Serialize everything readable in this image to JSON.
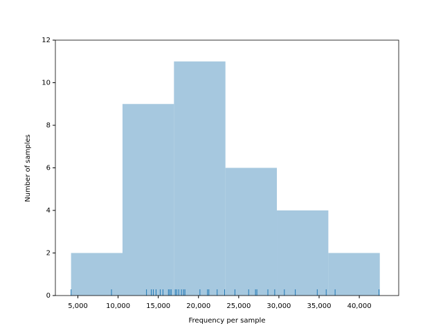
{
  "chart_data": {
    "type": "histogram",
    "xlabel": "Frequency per sample",
    "ylabel": "Number of samples",
    "bins": [
      4150,
      10550,
      16950,
      23350,
      29750,
      36150,
      42550
    ],
    "values": [
      2,
      9,
      11,
      6,
      4,
      2
    ],
    "color": "#a6c8df",
    "rug": [
      4150,
      9180,
      13530,
      14130,
      14380,
      14720,
      15240,
      15580,
      16260,
      16430,
      16600,
      17110,
      17280,
      17540,
      17880,
      18140,
      18310,
      20180,
      21120,
      21290,
      22320,
      23250,
      24530,
      26240,
      27090,
      27260,
      28630,
      29480,
      30680,
      32040,
      34770,
      35880,
      36990,
      42450
    ],
    "rug_color": "#1f77b4",
    "xlim": [
      2200,
      44900
    ],
    "ylim": [
      0,
      12
    ],
    "xticks": [
      {
        "value": 5000,
        "label": "5,000"
      },
      {
        "value": 10000,
        "label": "10,000"
      },
      {
        "value": 15000,
        "label": "15,000"
      },
      {
        "value": 20000,
        "label": "20,000"
      },
      {
        "value": 25000,
        "label": "25,000"
      },
      {
        "value": 30000,
        "label": "30,000"
      },
      {
        "value": 35000,
        "label": "35,000"
      },
      {
        "value": 40000,
        "label": "40,000"
      }
    ],
    "yticks": [
      0,
      2,
      4,
      6,
      8,
      10,
      12
    ]
  }
}
